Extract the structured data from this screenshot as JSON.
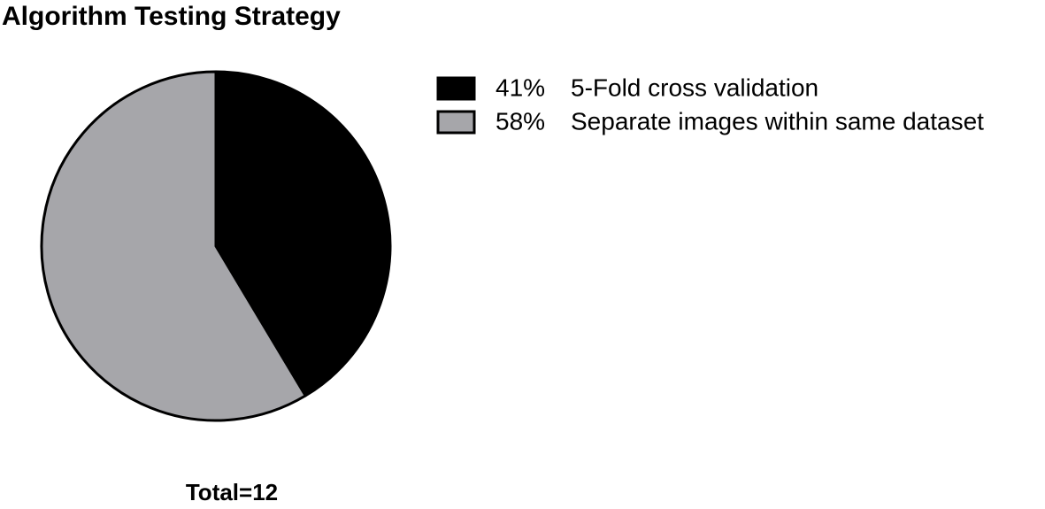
{
  "chart_data": {
    "type": "pie",
    "title": "Algorithm Testing Strategy",
    "categories": [
      "5-Fold cross validation",
      "Separate images within same dataset"
    ],
    "values": [
      41,
      58
    ],
    "value_labels": [
      "41%",
      "58%"
    ],
    "colors": [
      "#000000",
      "#a6a6aa"
    ],
    "annotation": "Total=12"
  }
}
